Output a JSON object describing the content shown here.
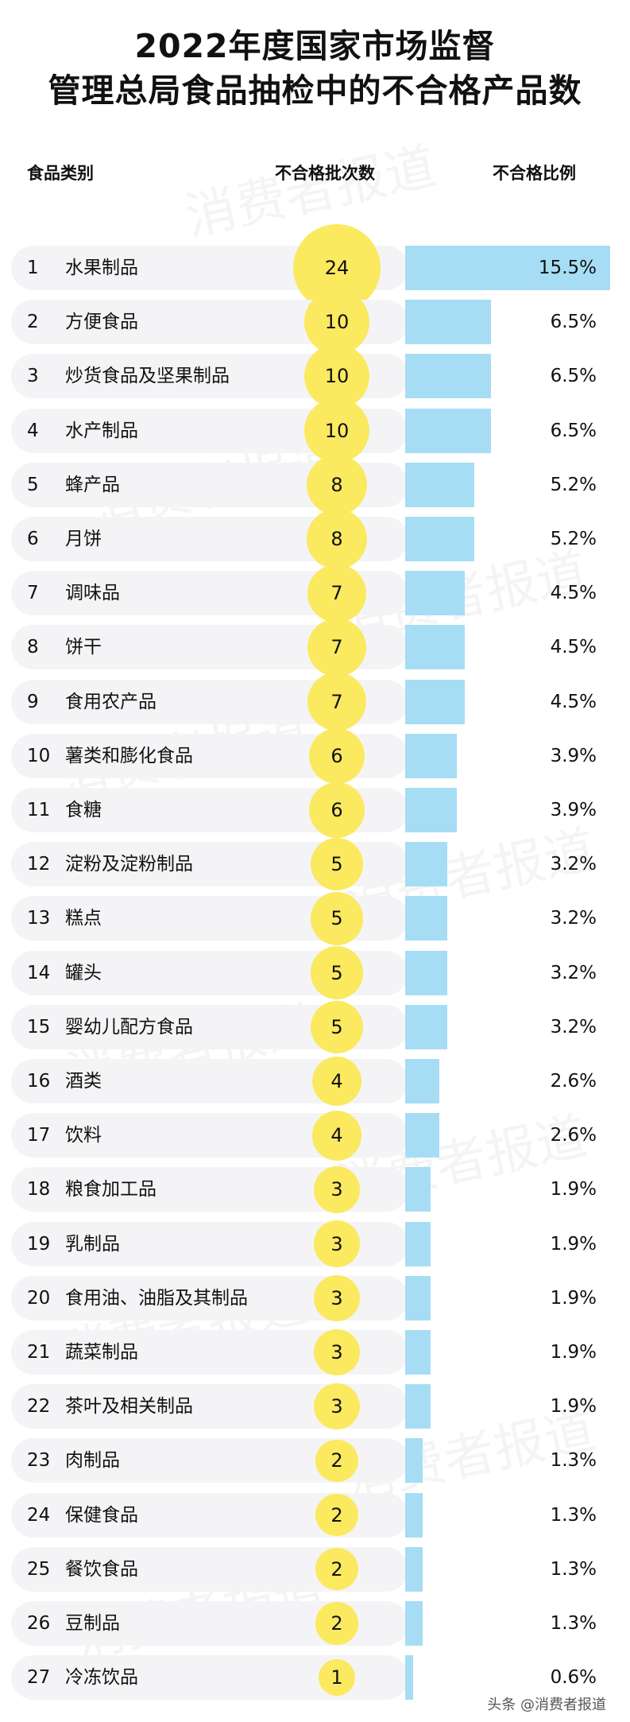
{
  "title_lines": [
    "2022年度国家市场监督",
    "管理总局食品抽检中的不合格产品数"
  ],
  "headers": {
    "category": "食品类别",
    "batches": "不合格批次数",
    "ratio": "不合格比例"
  },
  "watermark": "消费者报道",
  "footer": "头条 @消费者报道",
  "colors": {
    "bubble": "#fbe960",
    "bar": "#a6ddf5",
    "row_background": "#f4f4f6"
  },
  "chart_data": {
    "type": "table",
    "columns": [
      "食品类别",
      "不合格批次数",
      "不合格比例"
    ],
    "rows": [
      {
        "rank": "1",
        "name": "水果制品",
        "count": 24,
        "ratio": 15.5,
        "ratio_label": "15.5%"
      },
      {
        "rank": "2",
        "name": "方便食品",
        "count": 10,
        "ratio": 6.5,
        "ratio_label": "6.5%"
      },
      {
        "rank": "3",
        "name": "炒货食品及坚果制品",
        "count": 10,
        "ratio": 6.5,
        "ratio_label": "6.5%"
      },
      {
        "rank": "4",
        "name": "水产制品",
        "count": 10,
        "ratio": 6.5,
        "ratio_label": "6.5%"
      },
      {
        "rank": "5",
        "name": "蜂产品",
        "count": 8,
        "ratio": 5.2,
        "ratio_label": "5.2%"
      },
      {
        "rank": "6",
        "name": "月饼",
        "count": 8,
        "ratio": 5.2,
        "ratio_label": "5.2%"
      },
      {
        "rank": "7",
        "name": "调味品",
        "count": 7,
        "ratio": 4.5,
        "ratio_label": "4.5%"
      },
      {
        "rank": "8",
        "name": "饼干",
        "count": 7,
        "ratio": 4.5,
        "ratio_label": "4.5%"
      },
      {
        "rank": "9",
        "name": "食用农产品",
        "count": 7,
        "ratio": 4.5,
        "ratio_label": "4.5%"
      },
      {
        "rank": "10",
        "name": "薯类和膨化食品",
        "count": 6,
        "ratio": 3.9,
        "ratio_label": "3.9%"
      },
      {
        "rank": "11",
        "name": "食糖",
        "count": 6,
        "ratio": 3.9,
        "ratio_label": "3.9%"
      },
      {
        "rank": "12",
        "name": "淀粉及淀粉制品",
        "count": 5,
        "ratio": 3.2,
        "ratio_label": "3.2%"
      },
      {
        "rank": "13",
        "name": "糕点",
        "count": 5,
        "ratio": 3.2,
        "ratio_label": "3.2%"
      },
      {
        "rank": "14",
        "name": "罐头",
        "count": 5,
        "ratio": 3.2,
        "ratio_label": "3.2%"
      },
      {
        "rank": "15",
        "name": "婴幼儿配方食品",
        "count": 5,
        "ratio": 3.2,
        "ratio_label": "3.2%"
      },
      {
        "rank": "16",
        "name": "酒类",
        "count": 4,
        "ratio": 2.6,
        "ratio_label": "2.6%"
      },
      {
        "rank": "17",
        "name": "饮料",
        "count": 4,
        "ratio": 2.6,
        "ratio_label": "2.6%"
      },
      {
        "rank": "18",
        "name": "粮食加工品",
        "count": 3,
        "ratio": 1.9,
        "ratio_label": "1.9%"
      },
      {
        "rank": "19",
        "name": "乳制品",
        "count": 3,
        "ratio": 1.9,
        "ratio_label": "1.9%"
      },
      {
        "rank": "20",
        "name": "食用油、油脂及其制品",
        "count": 3,
        "ratio": 1.9,
        "ratio_label": "1.9%"
      },
      {
        "rank": "21",
        "name": "蔬菜制品",
        "count": 3,
        "ratio": 1.9,
        "ratio_label": "1.9%"
      },
      {
        "rank": "22",
        "name": "茶叶及相关制品",
        "count": 3,
        "ratio": 1.9,
        "ratio_label": "1.9%"
      },
      {
        "rank": "23",
        "name": "肉制品",
        "count": 2,
        "ratio": 1.3,
        "ratio_label": "1.3%"
      },
      {
        "rank": "24",
        "name": "保健食品",
        "count": 2,
        "ratio": 1.3,
        "ratio_label": "1.3%"
      },
      {
        "rank": "25",
        "name": "餐饮食品",
        "count": 2,
        "ratio": 1.3,
        "ratio_label": "1.3%"
      },
      {
        "rank": "26",
        "name": "豆制品",
        "count": 2,
        "ratio": 1.3,
        "ratio_label": "1.3%"
      },
      {
        "rank": "27",
        "name": "冷冻饮品",
        "count": 1,
        "ratio": 0.6,
        "ratio_label": "0.6%"
      }
    ]
  }
}
